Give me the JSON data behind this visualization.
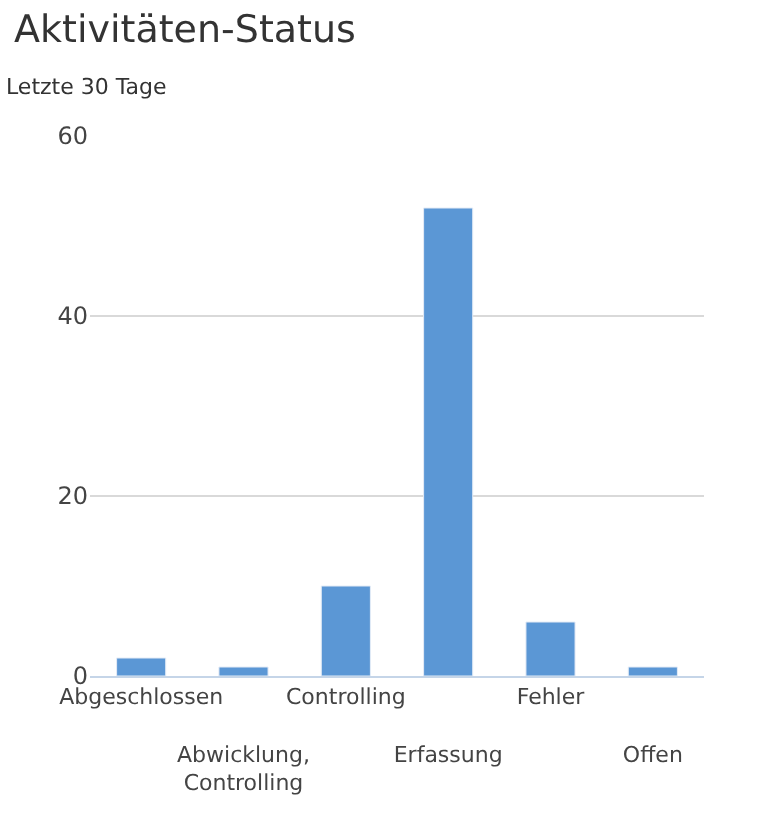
{
  "chart_data": {
    "type": "bar",
    "title": "Aktivitäten-Status",
    "subtitle": "Letzte 30 Tage",
    "categories": [
      "Abgeschlossen",
      "Abwicklung, Controlling",
      "Controlling",
      "Erfassung",
      "Fehler",
      "Offen"
    ],
    "values": [
      2,
      1,
      10,
      52,
      6,
      1
    ],
    "color": "#5b97d5",
    "ylim": [
      0,
      60
    ],
    "yticks": [
      0,
      20,
      40,
      60
    ],
    "grid": "y"
  }
}
